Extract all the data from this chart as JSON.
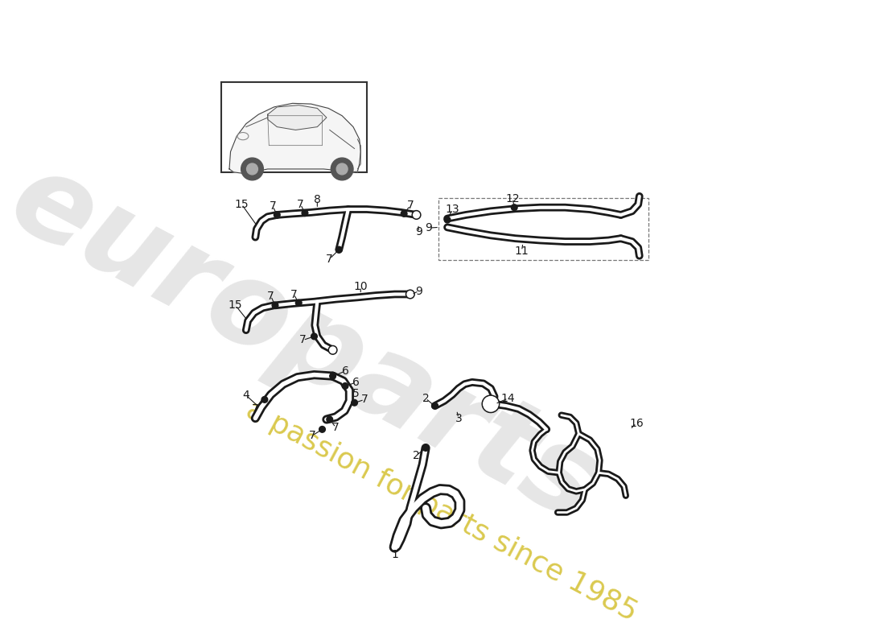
{
  "background_color": "#ffffff",
  "line_color": "#1a1a1a",
  "watermark_color_gray": "#c0c0c0",
  "watermark_color_yellow": "#d4c030",
  "hose_lw_out": 7,
  "hose_lw_in": 3,
  "clamp_r": 5,
  "label_fs": 10
}
